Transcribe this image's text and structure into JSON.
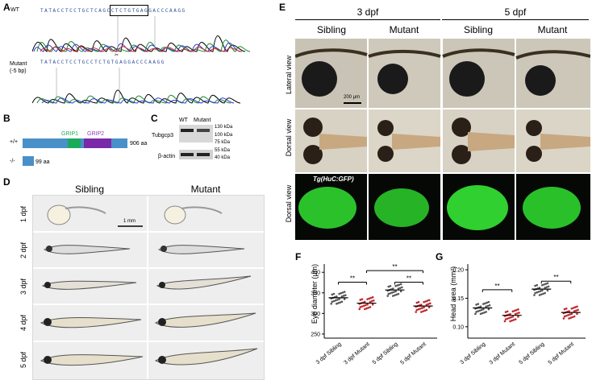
{
  "panelA": {
    "label": "A",
    "wt_label": "WT",
    "wt_seq": "TATACCTCCTGCTCAGCCTCTGTGAGGACCCAAGG",
    "mutant_label": "Mutant",
    "mutant_sub": "(-5 bp)",
    "mutant_seq": "TATACCTCCTGCCTCTGTGAGGACCCAAGG"
  },
  "panelB": {
    "label": "B",
    "wt_genotype": "+/+",
    "mut_genotype": "-/-",
    "domain1": "GRIP1",
    "domain2": "GRIP2",
    "wt_length": "906 aa",
    "mut_length": "99 aa",
    "colors": {
      "bar": "#4a90c8",
      "grip1": "#1aaa5a",
      "grip2": "#7a2aa8",
      "grip1_text": "#1aaa5a",
      "grip2_text": "#9a3ab8"
    }
  },
  "panelC": {
    "label": "C",
    "col_wt": "WT",
    "col_mut": "Mutant",
    "row1": "Tubgcp3",
    "row2": "β-actin",
    "markers": [
      "130 kDa",
      "100 kDa",
      "75 kDa",
      "55 kDa",
      "40 kDa"
    ]
  },
  "panelD": {
    "label": "D",
    "col_sibling": "Sibling",
    "col_mutant": "Mutant",
    "rows": [
      "1 dpf",
      "2 dpf",
      "3 dpf",
      "4 dpf",
      "5 dpf"
    ],
    "scale": "1 mm"
  },
  "panelE": {
    "label": "E",
    "time1": "3 dpf",
    "time2": "5 dpf",
    "cols": [
      "Sibling",
      "Mutant",
      "Sibling",
      "Mutant"
    ],
    "rows": [
      "Lateral view",
      "Dorsal view",
      "Dorsal view"
    ],
    "scale": "200 μm",
    "transgene": "Tg(HuC:GFP)"
  },
  "panelF": {
    "label": "F",
    "chart_data": {
      "type": "scatter",
      "ylabel": "Eye diameter (μm)",
      "ylim": [
        240,
        420
      ],
      "yticks": [
        250,
        300,
        350,
        400
      ],
      "categories": [
        "3 dpf Sibling",
        "3 dpf Mutant",
        "5 dpf Sibling",
        "5 dpf Mutant"
      ],
      "means": [
        338,
        325,
        357,
        318
      ],
      "colors": [
        "#555555",
        "#c0282a",
        "#555555",
        "#c0282a"
      ],
      "significance": [
        "**",
        "**",
        "**"
      ]
    }
  },
  "panelG": {
    "label": "G",
    "chart_data": {
      "type": "scatter",
      "ylabel": "Head area (mm²)",
      "ylim": [
        0.08,
        0.21
      ],
      "yticks": [
        "0.10",
        "0.15",
        "0.20"
      ],
      "categories": [
        "3 dpf Sibling",
        "3 dpf Mutant",
        "5 dpf Sibling",
        "5 dpf Mutant"
      ],
      "means": [
        0.133,
        0.12,
        0.166,
        0.125
      ],
      "colors": [
        "#555555",
        "#c0282a",
        "#555555",
        "#c0282a"
      ],
      "significance": [
        "**",
        "**"
      ]
    }
  }
}
